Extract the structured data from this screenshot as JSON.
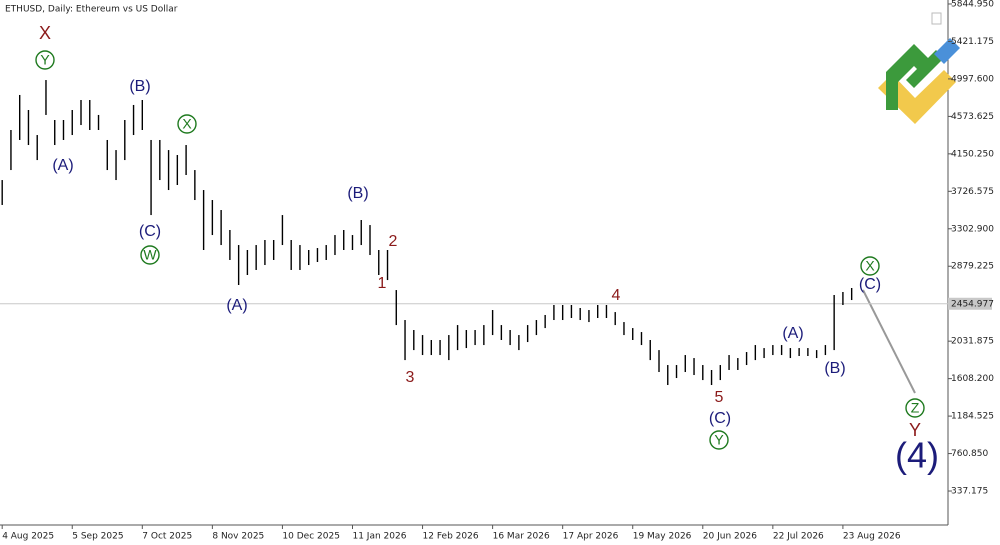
{
  "chart_data": {
    "type": "hilo",
    "title": "ETHUSD, Daily:  Ethereum vs US Dollar",
    "x": [
      "2025-08-04",
      "2025-08-08",
      "2025-08-12",
      "2025-08-16",
      "2025-08-20",
      "2025-08-24",
      "2025-08-28",
      "2025-09-01",
      "2025-09-05",
      "2025-09-09",
      "2025-09-13",
      "2025-09-17",
      "2025-09-21",
      "2025-09-25",
      "2025-09-29",
      "2025-10-03",
      "2025-10-07",
      "2025-10-11",
      "2025-10-15",
      "2025-10-19",
      "2025-10-23",
      "2025-10-27",
      "2025-10-31",
      "2025-11-04",
      "2025-11-08",
      "2025-11-12",
      "2025-11-16",
      "2025-11-20",
      "2025-11-24",
      "2025-11-28",
      "2025-12-02",
      "2025-12-06",
      "2025-12-10",
      "2025-12-14",
      "2025-12-18",
      "2025-12-22",
      "2025-12-26",
      "2025-12-30",
      "2026-01-03",
      "2026-01-07",
      "2026-01-11",
      "2026-01-15",
      "2026-01-19",
      "2026-01-23",
      "2026-01-27",
      "2026-01-31",
      "2026-02-04",
      "2026-02-08",
      "2026-02-12",
      "2026-02-16",
      "2026-02-20",
      "2026-02-24",
      "2026-02-28",
      "2026-03-04",
      "2026-03-08",
      "2026-03-12",
      "2026-03-16",
      "2026-03-20",
      "2026-03-24",
      "2026-03-28",
      "2026-04-01",
      "2026-04-05",
      "2026-04-09",
      "2026-04-13",
      "2026-04-17",
      "2026-04-21",
      "2026-04-25",
      "2026-04-29",
      "2026-05-03",
      "2026-05-07",
      "2026-05-11",
      "2026-05-15",
      "2026-05-19",
      "2026-05-23",
      "2026-05-27",
      "2026-05-31",
      "2026-06-04",
      "2026-06-08",
      "2026-06-12",
      "2026-06-16",
      "2026-06-20",
      "2026-06-24",
      "2026-06-28",
      "2026-07-02",
      "2026-07-06",
      "2026-07-10",
      "2026-07-14",
      "2026-07-18",
      "2026-07-22",
      "2026-07-26",
      "2026-07-30",
      "2026-08-03",
      "2026-08-07",
      "2026-08-11",
      "2026-08-15",
      "2026-08-19",
      "2026-08-23",
      "2026-08-27"
    ],
    "series": [
      {
        "name": "High",
        "values": [
          3854,
          4420,
          4816,
          4646,
          4363,
          4985,
          4533,
          4533,
          4646,
          4759,
          4759,
          4590,
          4307,
          4193,
          4533,
          4703,
          4759,
          4307,
          4307,
          4193,
          4137,
          4250,
          3967,
          3741,
          3628,
          3515,
          3289,
          3119,
          3063,
          3119,
          3176,
          3176,
          3458,
          3176,
          3119,
          3063,
          3085,
          3119,
          3232,
          3289,
          3232,
          3402,
          3345,
          3063,
          3063,
          2610,
          2271,
          2158,
          2101,
          2045,
          2045,
          2101,
          2214,
          2158,
          2158,
          2214,
          2384,
          2214,
          2158,
          2101,
          2214,
          2271,
          2328,
          2441,
          2441,
          2441,
          2407,
          2384,
          2441,
          2441,
          2361,
          2248,
          2180,
          2135,
          2045,
          1931,
          1762,
          1762,
          1875,
          1841,
          1762,
          1706,
          1762,
          1875,
          1841,
          1909,
          1988,
          1954,
          1988,
          1988,
          1954,
          1954,
          1954,
          1931,
          1988,
          2554,
          2588,
          2633
        ]
      },
      {
        "name": "Low",
        "values": [
          3572,
          3967,
          4307,
          4250,
          4080,
          4590,
          4250,
          4307,
          4363,
          4476,
          4420,
          4420,
          3967,
          3854,
          4080,
          4363,
          4420,
          3458,
          3854,
          3741,
          3798,
          3911,
          3628,
          3063,
          3232,
          3119,
          2950,
          2667,
          2780,
          2837,
          2893,
          2950,
          3119,
          2837,
          2837,
          2893,
          2927,
          2950,
          3006,
          3063,
          3063,
          3119,
          3006,
          2780,
          2723,
          2214,
          1818,
          1931,
          1875,
          1875,
          1875,
          1818,
          1931,
          1954,
          1988,
          1988,
          2101,
          2045,
          1988,
          1931,
          2022,
          2101,
          2180,
          2271,
          2271,
          2294,
          2271,
          2248,
          2294,
          2294,
          2214,
          2101,
          2045,
          1988,
          1818,
          1683,
          1536,
          1615,
          1683,
          1649,
          1592,
          1536,
          1592,
          1706,
          1706,
          1762,
          1818,
          1841,
          1875,
          1875,
          1841,
          1864,
          1864,
          1841,
          1875,
          1931,
          2441,
          2497
        ]
      }
    ],
    "color": "#000000",
    "xlim": [
      "2025-08-03",
      "2026-10-10"
    ],
    "xticks": [
      {
        "value": "2025-08-04",
        "label": "4 Aug 2025"
      },
      {
        "value": "2025-09-05",
        "label": "5 Sep 2025"
      },
      {
        "value": "2025-10-07",
        "label": "7 Oct 2025"
      },
      {
        "value": "2025-11-08",
        "label": "8 Nov 2025"
      },
      {
        "value": "2025-12-10",
        "label": "10 Dec 2025"
      },
      {
        "value": "2026-01-11",
        "label": "11 Jan 2026"
      },
      {
        "value": "2026-02-12",
        "label": "12 Feb 2026"
      },
      {
        "value": "2026-03-16",
        "label": "16 Mar 2026"
      },
      {
        "value": "2026-04-17",
        "label": "17 Apr 2026"
      },
      {
        "value": "2026-05-19",
        "label": "19 May 2026"
      },
      {
        "value": "2026-06-20",
        "label": "20 Jun 2026"
      },
      {
        "value": "2026-07-22",
        "label": "22 Jul 2026"
      },
      {
        "value": "2026-08-23",
        "label": "23 Aug 2026"
      }
    ],
    "ylim": [
      -47,
      5890
    ],
    "yticks": [
      {
        "value": 5844.95,
        "label": "5844.950"
      },
      {
        "value": 5421.175,
        "label": "5421.175"
      },
      {
        "value": 4997.6,
        "label": "4997.600"
      },
      {
        "value": 4573.625,
        "label": "4573.625"
      },
      {
        "value": 4150.25,
        "label": "4150.250"
      },
      {
        "value": 3726.575,
        "label": "3726.575"
      },
      {
        "value": 3302.9,
        "label": "3302.900"
      },
      {
        "value": 2879.225,
        "label": "2879.225"
      },
      {
        "value": 2031.875,
        "label": "2031.875"
      },
      {
        "value": 1608.2,
        "label": "1608.200"
      },
      {
        "value": 1184.525,
        "label": "1184.525"
      },
      {
        "value": 760.85,
        "label": "760.850"
      },
      {
        "value": 337.175,
        "label": "337.175"
      }
    ],
    "price_line": {
      "value": 2454.977,
      "label": "2454.977"
    },
    "annotations": [
      {
        "text": "X",
        "color": "#8b1a1a"
      },
      {
        "text": "Y",
        "color": "#1f7a1f",
        "circled": true
      },
      {
        "text": "(A)",
        "color": "#1c1c7a"
      },
      {
        "text": "(B)",
        "color": "#1c1c7a"
      },
      {
        "text": "X",
        "color": "#1f7a1f",
        "circled": true
      },
      {
        "text": "(C)",
        "color": "#1c1c7a"
      },
      {
        "text": "W",
        "color": "#1f7a1f",
        "circled": true
      },
      {
        "text": "(A)",
        "color": "#1c1c7a"
      },
      {
        "text": "(B)",
        "color": "#1c1c7a"
      },
      {
        "text": "2",
        "color": "#8b1a1a"
      },
      {
        "text": "1",
        "color": "#8b1a1a"
      },
      {
        "text": "3",
        "color": "#8b1a1a"
      },
      {
        "text": "4",
        "color": "#8b1a1a"
      },
      {
        "text": "5",
        "color": "#8b1a1a"
      },
      {
        "text": "(C)",
        "color": "#1c1c7a"
      },
      {
        "text": "Y",
        "color": "#1f7a1f",
        "circled": true
      },
      {
        "text": "(A)",
        "color": "#1c1c7a"
      },
      {
        "text": "(B)",
        "color": "#1c1c7a"
      },
      {
        "text": "X",
        "color": "#1f7a1f",
        "circled": true
      },
      {
        "text": "(C)",
        "color": "#1c1c7a"
      },
      {
        "text": "Z",
        "color": "#1f7a1f",
        "circled": true
      },
      {
        "text": "Y",
        "color": "#8b1a1a"
      },
      {
        "text": "(4)",
        "color": "#1c1c7a"
      }
    ]
  }
}
